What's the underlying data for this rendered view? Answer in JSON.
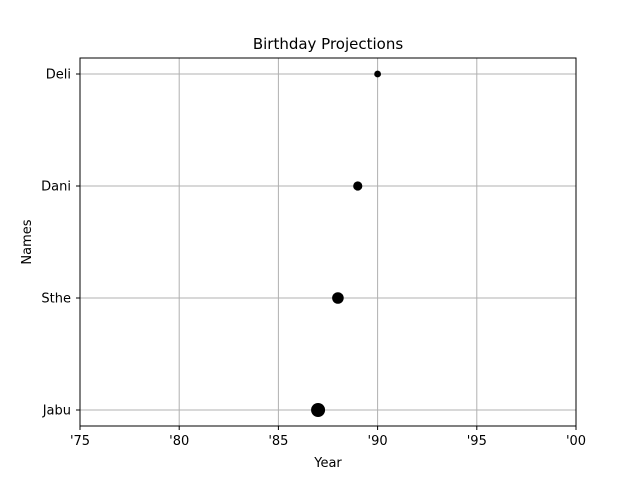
{
  "chart_data": {
    "type": "scatter",
    "title": "Birthday Projections",
    "xlabel": "Year",
    "ylabel": "Names",
    "xlim": [
      1975,
      2000
    ],
    "x_ticks": [
      1975,
      1980,
      1985,
      1990,
      1995,
      2000
    ],
    "x_tick_labels": [
      "'75",
      "'80",
      "'85",
      "'90",
      "'95",
      "'00"
    ],
    "categories": [
      "Jabu",
      "Sthe",
      "Dani",
      "Deli"
    ],
    "points": [
      {
        "name": "Jabu",
        "x": 1987,
        "size": 4
      },
      {
        "name": "Sthe",
        "x": 1988,
        "size": 3
      },
      {
        "name": "Dani",
        "x": 1989,
        "size": 2
      },
      {
        "name": "Deli",
        "x": 1990,
        "size": 1
      }
    ],
    "grid": true,
    "marker_color": "#000000",
    "grid_color": "#b0b0b0"
  }
}
